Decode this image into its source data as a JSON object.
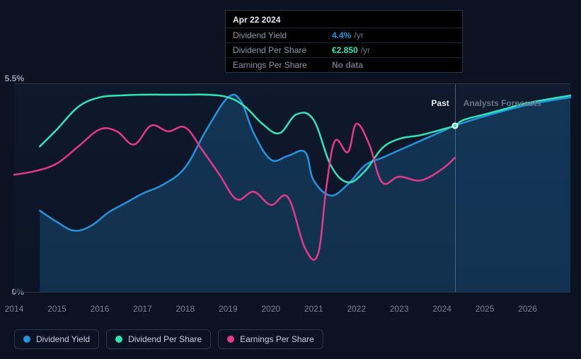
{
  "chart": {
    "type": "line",
    "background_color": "#0b1221",
    "grid_color": "#1b2538",
    "border_color": "#2a3548",
    "y_axis": {
      "min": 0,
      "max": 5.5,
      "top_label": "5.5%",
      "bottom_label": "0%",
      "label_color": "#9aa4b8",
      "label_fontsize": 12
    },
    "x_axis": {
      "years": [
        "2014",
        "2015",
        "2016",
        "2017",
        "2018",
        "2019",
        "2020",
        "2021",
        "2022",
        "2023",
        "2024",
        "2025",
        "2026"
      ],
      "start": 2014,
      "end": 2027,
      "label_color": "#7a8499",
      "label_fontsize": 12
    },
    "past_future_split_year": 2024.3,
    "past_label": "Past",
    "forecast_label": "Analysts Forecasts",
    "shade_past": "rgba(20,35,60,0.5)",
    "shade_future": "rgba(25,45,75,0.4)",
    "series": {
      "dividend_yield": {
        "label": "Dividend Yield",
        "color": "#2394df",
        "area_fill_opacity": 0.22,
        "points": [
          [
            2014.6,
            2.15
          ],
          [
            2015.0,
            1.85
          ],
          [
            2015.4,
            1.62
          ],
          [
            2015.8,
            1.75
          ],
          [
            2016.2,
            2.1
          ],
          [
            2016.6,
            2.35
          ],
          [
            2017.0,
            2.6
          ],
          [
            2017.5,
            2.85
          ],
          [
            2018.0,
            3.3
          ],
          [
            2018.5,
            4.3
          ],
          [
            2019.0,
            5.15
          ],
          [
            2019.3,
            5.05
          ],
          [
            2019.6,
            4.2
          ],
          [
            2020.0,
            3.5
          ],
          [
            2020.4,
            3.6
          ],
          [
            2020.8,
            3.7
          ],
          [
            2021.0,
            2.95
          ],
          [
            2021.4,
            2.55
          ],
          [
            2021.8,
            2.85
          ],
          [
            2022.2,
            3.35
          ],
          [
            2022.6,
            3.55
          ],
          [
            2023.0,
            3.75
          ],
          [
            2023.5,
            4.0
          ],
          [
            2024.0,
            4.25
          ],
          [
            2024.3,
            4.4
          ],
          [
            2025.0,
            4.65
          ],
          [
            2026.0,
            4.95
          ],
          [
            2027.0,
            5.15
          ]
        ]
      },
      "dividend_per_share": {
        "label": "Dividend Per Share",
        "color": "#2ee6b8",
        "points": [
          [
            2014.6,
            3.85
          ],
          [
            2015.0,
            4.3
          ],
          [
            2015.5,
            4.9
          ],
          [
            2016.0,
            5.15
          ],
          [
            2016.5,
            5.2
          ],
          [
            2017.0,
            5.22
          ],
          [
            2017.5,
            5.22
          ],
          [
            2018.0,
            5.22
          ],
          [
            2018.5,
            5.22
          ],
          [
            2019.0,
            5.15
          ],
          [
            2019.4,
            4.9
          ],
          [
            2019.8,
            4.45
          ],
          [
            2020.2,
            4.2
          ],
          [
            2020.6,
            4.7
          ],
          [
            2021.0,
            4.55
          ],
          [
            2021.4,
            3.35
          ],
          [
            2021.8,
            2.9
          ],
          [
            2022.2,
            3.2
          ],
          [
            2022.6,
            3.8
          ],
          [
            2023.0,
            4.05
          ],
          [
            2023.5,
            4.15
          ],
          [
            2024.0,
            4.3
          ],
          [
            2024.3,
            4.4
          ],
          [
            2024.5,
            4.55
          ],
          [
            2025.0,
            4.7
          ],
          [
            2025.5,
            4.85
          ],
          [
            2026.0,
            5.0
          ],
          [
            2027.0,
            5.2
          ]
        ]
      },
      "earnings_per_share": {
        "label": "Earnings Per Share",
        "color": "#e6398b",
        "points": [
          [
            2014.0,
            3.1
          ],
          [
            2014.5,
            3.2
          ],
          [
            2015.0,
            3.4
          ],
          [
            2015.5,
            3.85
          ],
          [
            2016.0,
            4.3
          ],
          [
            2016.4,
            4.25
          ],
          [
            2016.8,
            3.9
          ],
          [
            2017.2,
            4.4
          ],
          [
            2017.6,
            4.25
          ],
          [
            2018.0,
            4.35
          ],
          [
            2018.4,
            3.75
          ],
          [
            2018.8,
            3.1
          ],
          [
            2019.2,
            2.45
          ],
          [
            2019.6,
            2.65
          ],
          [
            2020.0,
            2.3
          ],
          [
            2020.4,
            2.5
          ],
          [
            2020.8,
            1.15
          ],
          [
            2021.1,
            1.0
          ],
          [
            2021.3,
            2.8
          ],
          [
            2021.5,
            4.0
          ],
          [
            2021.8,
            3.7
          ],
          [
            2022.0,
            4.45
          ],
          [
            2022.3,
            3.9
          ],
          [
            2022.6,
            2.9
          ],
          [
            2023.0,
            3.05
          ],
          [
            2023.5,
            2.95
          ],
          [
            2024.0,
            3.25
          ],
          [
            2024.3,
            3.55
          ]
        ]
      }
    },
    "line_width": 2.5
  },
  "tooltip": {
    "date": "Apr 22 2024",
    "x_year": 2024.3,
    "rows": [
      {
        "key": "Dividend Yield",
        "value": "4.4%",
        "unit": "/yr",
        "value_color": "#2394df"
      },
      {
        "key": "Dividend Per Share",
        "value": "€2.850",
        "unit": "/yr",
        "value_color": "#2ee6b8"
      },
      {
        "key": "Earnings Per Share",
        "value": "No data",
        "unit": "",
        "value_color": "#6b7488"
      }
    ],
    "bg": "#000000",
    "border": "#2c3445"
  },
  "legend": {
    "items": [
      {
        "label": "Dividend Yield",
        "color": "#2394df"
      },
      {
        "label": "Dividend Per Share",
        "color": "#2ee6b8"
      },
      {
        "label": "Earnings Per Share",
        "color": "#e6398b"
      }
    ],
    "border_color": "#2a3548",
    "text_color": "#c7cfdd"
  },
  "markers_at_split": [
    {
      "series": "dividend_yield",
      "color": "#2394df"
    },
    {
      "series": "dividend_per_share",
      "color": "#2ee6b8"
    }
  ]
}
